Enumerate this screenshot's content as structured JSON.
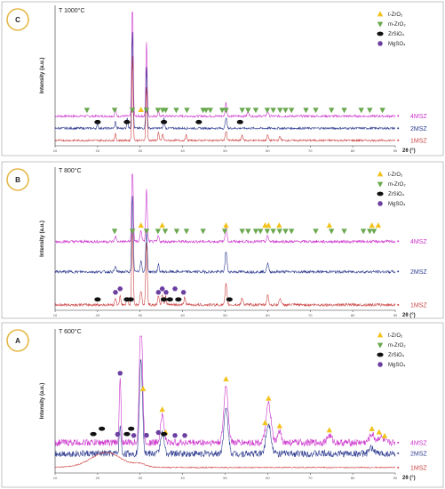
{
  "colors": {
    "m4": "#cc33cc",
    "m2": "#2c3a8f",
    "m1": "#cc4444",
    "t_zro2": "#f2c21b",
    "m_zro2": "#6aa84f",
    "zrsio4": "#111111",
    "mgso4": "#6b3fa0",
    "frame": "#888888",
    "circle": "#e6b84a"
  },
  "chart_data": [
    {
      "type": "line",
      "panel": "C",
      "temperature": "T 1000°C",
      "ylabel": "Intensity (a.u.)",
      "xlabel": "2θ (°)",
      "xlim": [
        10,
        90
      ],
      "x_ticks": [
        "10",
        "20",
        "30",
        "40",
        "50",
        "60",
        "70",
        "80",
        "90"
      ],
      "series": [
        {
          "name": "4MSZ",
          "color_key": "m4",
          "baseline": 0.22,
          "noise": 0.008,
          "peaks": [
            [
              28.2,
              1.0,
              0.22
            ],
            [
              31.5,
              0.55,
              0.22
            ],
            [
              24.2,
              0.06,
              0.2
            ],
            [
              34.3,
              0.05,
              0.2
            ],
            [
              50.2,
              0.1,
              0.25
            ],
            [
              55.4,
              0.04,
              0.25
            ],
            [
              60.0,
              0.04,
              0.25
            ]
          ]
        },
        {
          "name": "2MSZ",
          "color_key": "m2",
          "baseline": 0.13,
          "noise": 0.008,
          "peaks": [
            [
              28.2,
              0.72,
              0.22
            ],
            [
              31.5,
              0.45,
              0.22
            ],
            [
              27.0,
              0.08,
              0.2
            ],
            [
              35.6,
              0.08,
              0.2
            ],
            [
              24.2,
              0.05,
              0.2
            ],
            [
              50.2,
              0.08,
              0.25
            ],
            [
              20.0,
              0.03,
              0.2
            ]
          ]
        },
        {
          "name": "1MSZ",
          "color_key": "m1",
          "baseline": 0.04,
          "noise": 0.007,
          "peaks": [
            [
              28.2,
              0.62,
              0.22
            ],
            [
              31.5,
              0.4,
              0.22
            ],
            [
              24.2,
              0.05,
              0.2
            ],
            [
              34.3,
              0.06,
              0.2
            ],
            [
              35.3,
              0.05,
              0.2
            ],
            [
              40.8,
              0.04,
              0.2
            ],
            [
              50.2,
              0.07,
              0.25
            ],
            [
              54.0,
              0.04,
              0.25
            ],
            [
              60.0,
              0.04,
              0.25
            ],
            [
              62.9,
              0.03,
              0.25
            ]
          ]
        }
      ],
      "markers": [
        {
          "phase": "m-ZrO2",
          "x": [
            17.5,
            24.0,
            28.2,
            31.5,
            34.2,
            35.3,
            36.0,
            38.5,
            41.0,
            44.8,
            45.5,
            46.5,
            49.3,
            50.2,
            54.0,
            55.4,
            57.2,
            59.9,
            61.3,
            62.9,
            64.2,
            65.6,
            69.0,
            71.3,
            75.0,
            78.0,
            82.0,
            84.0,
            87.0
          ]
        },
        {
          "phase": "t-ZrO2",
          "x": [
            30.2
          ]
        },
        {
          "phase": "ZrSiO4",
          "x": [
            20.0,
            26.9,
            35.6,
            43.8,
            53.5
          ]
        }
      ]
    },
    {
      "type": "line",
      "panel": "B",
      "temperature": "T 800°C",
      "ylabel": "Intensity (a.u.)",
      "xlabel": "2θ (°)",
      "xlim": [
        10,
        90
      ],
      "x_ticks": [
        "10",
        "20",
        "30",
        "40",
        "50",
        "60",
        "70",
        "80",
        "90"
      ],
      "series": [
        {
          "name": "4MSZ",
          "color_key": "m4",
          "baseline": 0.5,
          "noise": 0.01,
          "peaks": [
            [
              28.2,
              0.62,
              0.25
            ],
            [
              31.5,
              0.38,
              0.25
            ],
            [
              30.2,
              0.08,
              0.3
            ],
            [
              50.2,
              0.1,
              0.3
            ],
            [
              24.2,
              0.04,
              0.25
            ],
            [
              34.3,
              0.04,
              0.25
            ],
            [
              60.0,
              0.04,
              0.3
            ]
          ]
        },
        {
          "name": "2MSZ",
          "color_key": "m2",
          "baseline": 0.28,
          "noise": 0.01,
          "peaks": [
            [
              28.2,
              0.55,
              0.25
            ],
            [
              31.5,
              0.3,
              0.25
            ],
            [
              30.2,
              0.08,
              0.3
            ],
            [
              50.2,
              0.15,
              0.3
            ],
            [
              24.2,
              0.04,
              0.25
            ],
            [
              34.3,
              0.05,
              0.25
            ],
            [
              60.0,
              0.06,
              0.3
            ]
          ]
        },
        {
          "name": "1MSZ",
          "color_key": "m1",
          "baseline": 0.04,
          "noise": 0.01,
          "peaks": [
            [
              28.2,
              0.55,
              0.25
            ],
            [
              31.5,
              0.45,
              0.25
            ],
            [
              30.2,
              0.1,
              0.3
            ],
            [
              24.2,
              0.05,
              0.25
            ],
            [
              25.3,
              0.06,
              0.25
            ],
            [
              27.0,
              0.05,
              0.25
            ],
            [
              34.3,
              0.07,
              0.25
            ],
            [
              35.2,
              0.08,
              0.25
            ],
            [
              36.0,
              0.06,
              0.25
            ],
            [
              40.5,
              0.06,
              0.25
            ],
            [
              50.2,
              0.15,
              0.3
            ],
            [
              54.0,
              0.05,
              0.3
            ],
            [
              60.0,
              0.07,
              0.3
            ],
            [
              62.9,
              0.05,
              0.3
            ]
          ]
        }
      ],
      "markers": [
        {
          "phase": "m-ZrO2",
          "x": [
            24.0,
            28.2,
            31.5,
            34.2,
            35.9,
            38.6,
            40.9,
            44.8,
            49.9,
            54.0,
            55.4,
            57.2,
            58.3,
            59.9,
            61.3,
            62.8,
            64.2,
            65.6,
            71.3,
            75.0,
            78.0,
            82.5,
            84.0,
            85.0
          ]
        },
        {
          "phase": "t-ZrO2",
          "x": [
            30.2,
            35.2,
            50.2,
            59.4,
            60.2,
            62.7,
            74.5,
            84.5,
            86.0
          ]
        },
        {
          "phase": "ZrSiO4",
          "x": [
            20.0,
            26.9,
            27.8,
            35.6,
            37.0,
            39.0,
            51.0
          ]
        },
        {
          "phase": "MgSO4",
          "x": [
            24.2,
            25.3,
            34.3,
            35.2,
            36.1,
            38.2,
            40.2
          ]
        }
      ]
    },
    {
      "type": "line",
      "panel": "A",
      "temperature": "T 600°C",
      "ylabel": "Intensity (a.u.)",
      "xlabel": "2θ (°)",
      "xlim": [
        10,
        90
      ],
      "x_ticks": [
        "10",
        "20",
        "30",
        "40",
        "50",
        "60",
        "70",
        "80",
        "90"
      ],
      "series": [
        {
          "name": "4MSZ",
          "color_key": "m4",
          "baseline": 0.22,
          "noise": 0.025,
          "peaks": [
            [
              30.2,
              0.95,
              0.5
            ],
            [
              25.3,
              0.45,
              0.3
            ],
            [
              35.2,
              0.2,
              0.6
            ],
            [
              50.2,
              0.42,
              0.7
            ],
            [
              60.2,
              0.28,
              0.8
            ],
            [
              62.8,
              0.08,
              0.6
            ],
            [
              74.5,
              0.05,
              0.8
            ],
            [
              84.5,
              0.06,
              0.8
            ],
            [
              86.5,
              0.04,
              0.8
            ]
          ]
        },
        {
          "name": "2MSZ",
          "color_key": "m2",
          "baseline": 0.14,
          "noise": 0.025,
          "peaks": [
            [
              30.2,
              0.7,
              0.5
            ],
            [
              25.3,
              0.2,
              0.3
            ],
            [
              35.2,
              0.15,
              0.6
            ],
            [
              50.2,
              0.32,
              0.7
            ],
            [
              60.2,
              0.22,
              0.8
            ],
            [
              84.5,
              0.04,
              0.8
            ]
          ]
        },
        {
          "name": "1MSZ",
          "color_key": "m1",
          "baseline": 0.04,
          "noise": 0.008,
          "peaks": [
            [
              22.0,
              0.05,
              4.0
            ],
            [
              30.0,
              0.02,
              2.0
            ]
          ]
        }
      ],
      "markers": [
        {
          "phase": "t-ZrO2",
          "x": [
            30.7,
            35.2,
            36.0,
            50.2,
            59.4,
            60.2,
            62.8,
            74.5,
            84.5,
            86.2,
            87.5
          ]
        },
        {
          "phase": "ZrSiO4",
          "x": [
            19.0,
            21.0,
            26.9,
            27.9,
            35.6
          ]
        },
        {
          "phase": "MgSO4",
          "x": [
            25.3,
            24.7,
            28.5,
            31.5,
            34.3,
            38.2,
            40.5
          ]
        }
      ]
    }
  ],
  "legend": [
    {
      "key": "t_zro2",
      "symbol": "triangle-up",
      "text": "t-ZrO₂"
    },
    {
      "key": "m_zro2",
      "symbol": "triangle-down",
      "text": "m-ZrO₂"
    },
    {
      "key": "zrsio4",
      "symbol": "ellipse",
      "text": "ZrSiO₄"
    },
    {
      "key": "mgso4",
      "symbol": "hexagon",
      "text": "MgSO₄"
    }
  ]
}
